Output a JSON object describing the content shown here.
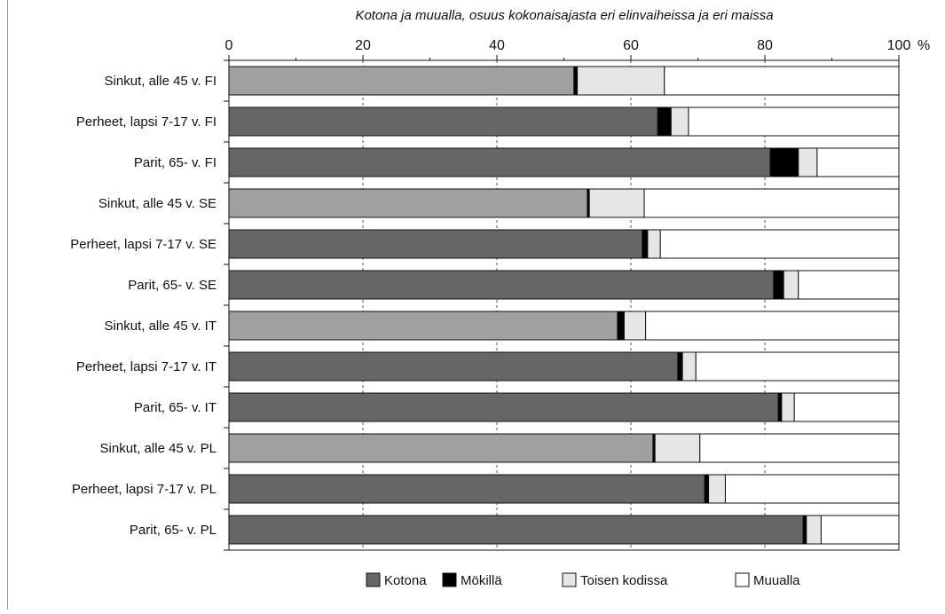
{
  "chart_data": {
    "type": "bar",
    "orientation": "horizontal",
    "stacked": true,
    "title": "Kotona ja muualla, osuus kokonaisajasta eri elinvaiheissa ja eri maissa",
    "x_unit": "%",
    "xlim": [
      0,
      100
    ],
    "x_ticks": [
      0,
      20,
      40,
      60,
      80,
      100
    ],
    "grid": "vertical dashed",
    "legend_position": "bottom",
    "categories": [
      "Sinkut, alle 45 v. FI",
      "Perheet, lapsi 7-17 v. FI",
      "Parit, 65- v. FI",
      "Sinkut, alle 45 v. SE",
      "Perheet, lapsi 7-17 v. SE",
      "Parit, 65- v. SE",
      "Sinkut, alle 45 v. IT",
      "Perheet, lapsi 7-17 v. IT",
      "Parit, 65- v. IT",
      "Sinkut, alle 45 v. PL",
      "Perheet, lapsi 7-17 v. PL",
      "Parit, 65- v. PL"
    ],
    "series": [
      {
        "name": "Kotona",
        "color": "#666666",
        "single_color": "#a0a0a0",
        "values": [
          51.5,
          64.0,
          80.8,
          53.5,
          61.7,
          81.3,
          58.0,
          67.0,
          82.0,
          63.3,
          71.0,
          85.7
        ]
      },
      {
        "name": "Mökillä",
        "color": "#000000",
        "values": [
          0.5,
          2.0,
          4.2,
          0.3,
          0.8,
          1.5,
          1.0,
          0.7,
          0.5,
          0.3,
          0.6,
          0.5
        ]
      },
      {
        "name": "Toisen kodissa",
        "color": "#e6e6e6",
        "values": [
          13.0,
          2.6,
          2.8,
          8.2,
          1.9,
          2.2,
          3.2,
          2.0,
          1.9,
          6.7,
          2.5,
          2.2
        ]
      },
      {
        "name": "Muualla",
        "color": "#ffffff",
        "values": [
          35.0,
          31.4,
          12.2,
          38.0,
          35.6,
          15.0,
          37.8,
          30.3,
          15.6,
          29.7,
          25.9,
          11.6
        ]
      }
    ]
  }
}
